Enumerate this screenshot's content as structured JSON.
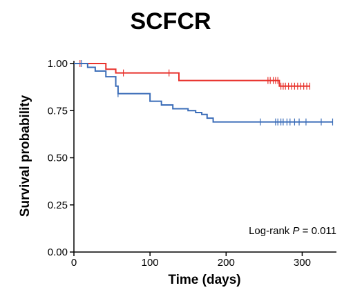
{
  "chart_data": {
    "type": "line",
    "title": "SCFCR",
    "xlabel": "Time (days)",
    "ylabel": "Survival probability",
    "xlim": [
      0,
      345
    ],
    "ylim": [
      0,
      1
    ],
    "xticks": [
      0,
      100,
      200,
      300
    ],
    "xtick_labels": [
      "0",
      "100",
      "200",
      "300"
    ],
    "yticks": [
      0,
      0.25,
      0.5,
      0.75,
      1
    ],
    "ytick_labels": [
      "0.00",
      "0.25",
      "0.50",
      "0.75",
      "1.00"
    ],
    "annotation": {
      "prefix": "Log-rank ",
      "p_symbol": "P",
      "suffix": " = 0.011"
    },
    "grid": false,
    "series": [
      {
        "color": "#e8322c",
        "steps": [
          [
            0,
            1.0
          ],
          [
            42,
            0.97
          ],
          [
            55,
            0.95
          ],
          [
            138,
            0.91
          ],
          [
            270,
            0.88
          ],
          [
            310,
            0.88
          ]
        ],
        "censor_times": [
          8,
          65,
          125,
          255,
          258,
          262,
          265,
          268,
          272,
          275,
          278,
          282,
          286,
          290,
          294,
          298,
          302,
          306,
          310
        ]
      },
      {
        "color": "#3a6cb8",
        "steps": [
          [
            0,
            1.0
          ],
          [
            18,
            0.98
          ],
          [
            28,
            0.96
          ],
          [
            42,
            0.93
          ],
          [
            55,
            0.88
          ],
          [
            58,
            0.84
          ],
          [
            100,
            0.8
          ],
          [
            115,
            0.78
          ],
          [
            130,
            0.76
          ],
          [
            150,
            0.75
          ],
          [
            160,
            0.74
          ],
          [
            168,
            0.73
          ],
          [
            175,
            0.71
          ],
          [
            183,
            0.69
          ],
          [
            340,
            0.69
          ]
        ],
        "censor_times": [
          10,
          58,
          245,
          265,
          268,
          272,
          275,
          280,
          284,
          290,
          296,
          305,
          325,
          340
        ]
      }
    ]
  }
}
